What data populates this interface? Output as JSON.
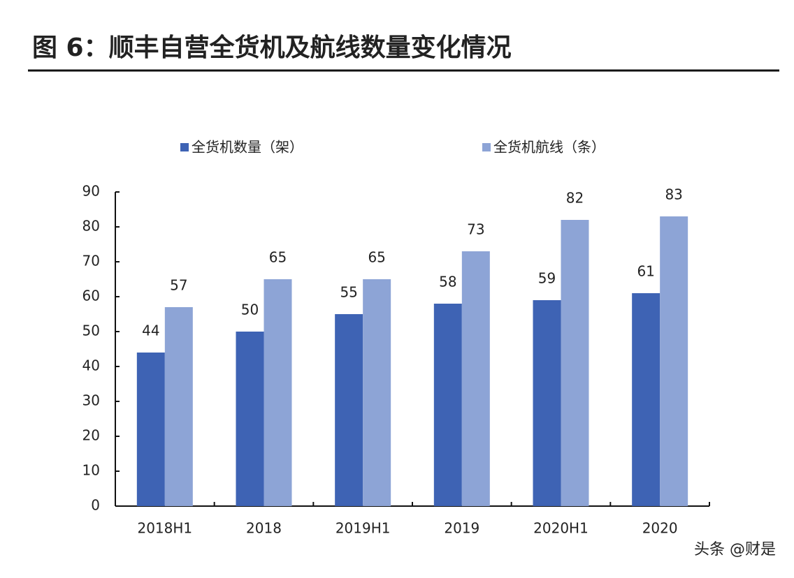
{
  "chart_data": {
    "type": "bar",
    "title": "图 6：顺丰自营全货机及航线数量变化情况",
    "categories": [
      "2018H1",
      "2018",
      "2019H1",
      "2019",
      "2020H1",
      "2020"
    ],
    "series": [
      {
        "name": "全货机数量（架）",
        "color": "#3e63b4",
        "values": [
          44,
          50,
          55,
          58,
          59,
          61
        ]
      },
      {
        "name": "全货机航线（条）",
        "color": "#8da4d6",
        "values": [
          57,
          65,
          65,
          73,
          82,
          83
        ]
      }
    ],
    "ylim": [
      0,
      90
    ],
    "yticks": [
      0,
      10,
      20,
      30,
      40,
      50,
      60,
      70,
      80,
      90
    ],
    "legend": "top",
    "watermark": "头条 @财是"
  }
}
